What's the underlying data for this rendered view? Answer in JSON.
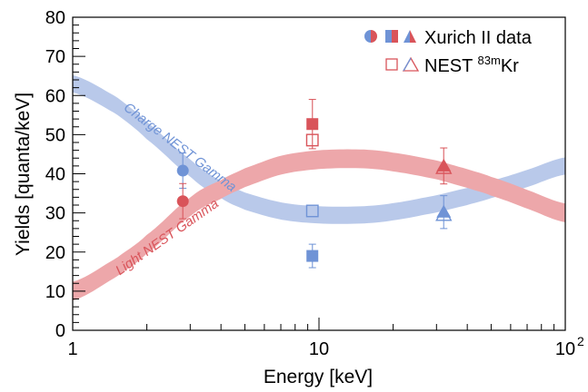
{
  "chart_data": {
    "type": "scatter",
    "xlabel": "Energy [keV]",
    "ylabel": "Yields [quanta/keV]",
    "x_scale": "log",
    "xlim": [
      1,
      100
    ],
    "ylim": [
      0,
      80
    ],
    "x_ticks": [
      {
        "value": 1,
        "label": "1"
      },
      {
        "value": 10,
        "label": "10"
      },
      {
        "value": 100,
        "label": "10",
        "sup": "2"
      }
    ],
    "y_ticks": [
      0,
      10,
      20,
      30,
      40,
      50,
      60,
      70,
      80
    ],
    "grid": false,
    "legend": {
      "placement": "top-right",
      "entries": [
        {
          "label": "Xurich II data",
          "markers": "filled"
        },
        {
          "label_prefix": "NEST ",
          "label_sup": "83m",
          "label_suffix": "Kr",
          "markers": "open"
        }
      ]
    },
    "colors": {
      "charge": "#6f93d6",
      "light": "#d9545a",
      "charge_band": "#b9c9ea",
      "light_band": "#eda7aa"
    },
    "bands": [
      {
        "name": "Charge NEST Gamma",
        "color_key": "charge_band",
        "x": [
          1,
          1.5,
          2,
          3,
          4,
          5,
          7,
          10,
          15,
          20,
          30,
          40,
          50,
          70,
          100
        ],
        "y": [
          63,
          57.5,
          51,
          41.5,
          36,
          33,
          30.5,
          29.5,
          29.5,
          30.3,
          32.3,
          34.2,
          36,
          38.8,
          42
        ],
        "half_width": 2.2,
        "label_x": 1.6,
        "label_y": 56.5
      },
      {
        "name": "Light NEST Gamma",
        "color_key": "light_band",
        "x": [
          1,
          1.5,
          2,
          3,
          4,
          5,
          7,
          10,
          15,
          20,
          30,
          40,
          50,
          70,
          100
        ],
        "y": [
          10,
          16,
          22,
          31.5,
          36,
          39,
          42.2,
          43.6,
          43.8,
          43,
          41,
          38.8,
          36.8,
          33.5,
          30
        ],
        "half_width": 2.4,
        "label_x": 1.55,
        "label_y": 14
      }
    ],
    "series": [
      {
        "name": "Xurich II data",
        "kind": "charge",
        "marker": "circle",
        "filled": true,
        "x": 2.8,
        "y": 40.8,
        "err": 4.5
      },
      {
        "name": "Xurich II data",
        "kind": "light",
        "marker": "circle",
        "filled": true,
        "x": 2.8,
        "y": 33,
        "err": 4.5
      },
      {
        "name": "Xurich II data",
        "kind": "light",
        "marker": "square",
        "filled": true,
        "x": 9.4,
        "y": 52.7,
        "err": 6.3
      },
      {
        "name": "Xurich II data",
        "kind": "charge",
        "marker": "square",
        "filled": true,
        "x": 9.4,
        "y": 19,
        "err": 3
      },
      {
        "name": "NEST 83mKr",
        "kind": "light",
        "marker": "square",
        "filled": false,
        "x": 9.4,
        "y": 48.6,
        "err": 0
      },
      {
        "name": "NEST 83mKr",
        "kind": "charge",
        "marker": "square",
        "filled": false,
        "x": 9.4,
        "y": 30.5,
        "err": 0
      },
      {
        "name": "Xurich II data",
        "kind": "light",
        "marker": "triangle",
        "filled": true,
        "x": 32.1,
        "y": 42,
        "err": 4.6
      },
      {
        "name": "Xurich II data",
        "kind": "charge",
        "marker": "triangle",
        "filled": true,
        "x": 32.1,
        "y": 30.2,
        "err": 4.2
      },
      {
        "name": "NEST 83mKr",
        "kind": "light",
        "marker": "triangle",
        "filled": false,
        "x": 32.1,
        "y": 41.5,
        "err": 0
      },
      {
        "name": "NEST 83mKr",
        "kind": "charge",
        "marker": "triangle",
        "filled": false,
        "x": 32.1,
        "y": 29.5,
        "err": 0
      }
    ]
  }
}
